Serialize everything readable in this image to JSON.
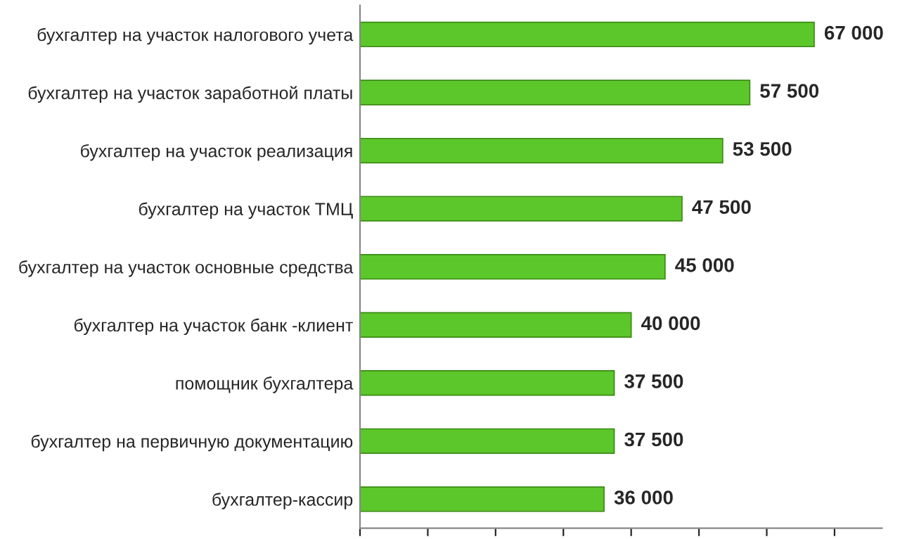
{
  "chart_data": {
    "type": "bar",
    "orientation": "horizontal",
    "categories": [
      "бухгалтер на участок налогового учета",
      "бухгалтер на участок заработной платы",
      "бухгалтер на участок реализация",
      "бухгалтер на участок ТМЦ",
      "бухгалтер на участок основные средства",
      "бухгалтер на участок банк -клиент",
      "помощник бухгалтера",
      "бухгалтер на первичную документацию",
      "бухгалтер-кассир"
    ],
    "values": [
      67000,
      57500,
      53500,
      47500,
      45000,
      40000,
      37500,
      37500,
      36000
    ],
    "value_labels": [
      "67 000",
      "57 500",
      "53 500",
      "47 500",
      "45 000",
      "40 000",
      "37 500",
      "37 500",
      "36 000"
    ],
    "color": "#5cc72a",
    "xlim": [
      0,
      77000
    ],
    "xticks": [
      {
        "value": 0,
        "label": null
      },
      {
        "value": 10000,
        "label": null
      },
      {
        "value": 20000,
        "label": null
      },
      {
        "value": 30000,
        "label": null
      },
      {
        "value": 40000,
        "label": null
      },
      {
        "value": 50000,
        "label": null
      },
      {
        "value": 60000,
        "label": null
      },
      {
        "value": 70000,
        "label": null
      }
    ],
    "tick_labels": "y",
    "grid": false,
    "legend": false
  }
}
